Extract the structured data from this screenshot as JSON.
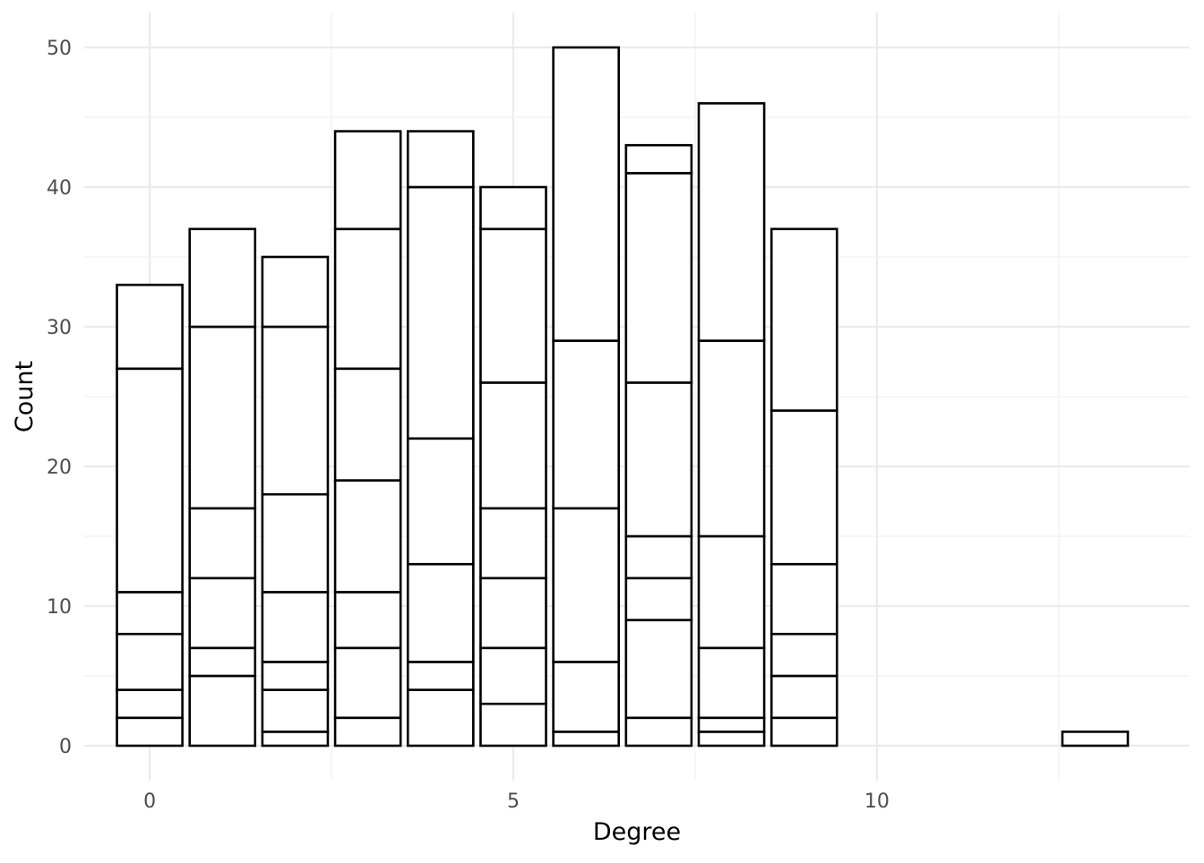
{
  "chart_data": {
    "type": "bar",
    "stacked": true,
    "title": "",
    "xlabel": "Degree",
    "ylabel": "Count",
    "xlim": [
      -0.9,
      14.3
    ],
    "ylim": [
      -2.5,
      52.5
    ],
    "x_ticks": [
      0,
      5,
      10
    ],
    "y_ticks": [
      0,
      10,
      20,
      30,
      40,
      50
    ],
    "grid": true,
    "legend": "none",
    "fill_color": "#ffffff",
    "outline_color": "#000000",
    "bars": [
      {
        "x": 0,
        "total": 33,
        "boundaries": [
          2,
          4,
          8,
          11,
          27,
          33
        ]
      },
      {
        "x": 1,
        "total": 37,
        "boundaries": [
          5,
          7,
          12,
          17,
          30,
          37
        ]
      },
      {
        "x": 2,
        "total": 35,
        "boundaries": [
          1,
          4,
          6,
          11,
          18,
          30,
          35
        ]
      },
      {
        "x": 3,
        "total": 44,
        "boundaries": [
          2,
          7,
          11,
          19,
          27,
          37,
          44
        ]
      },
      {
        "x": 4,
        "total": 44,
        "boundaries": [
          4,
          6,
          13,
          22,
          40,
          44
        ]
      },
      {
        "x": 5,
        "total": 40,
        "boundaries": [
          3,
          7,
          12,
          17,
          26,
          37,
          40
        ]
      },
      {
        "x": 6,
        "total": 50,
        "boundaries": [
          1,
          6,
          17,
          29,
          50
        ]
      },
      {
        "x": 7,
        "total": 43,
        "boundaries": [
          2,
          9,
          12,
          15,
          26,
          41,
          43
        ]
      },
      {
        "x": 8,
        "total": 46,
        "boundaries": [
          1,
          2,
          7,
          15,
          29,
          46
        ]
      },
      {
        "x": 9,
        "total": 37,
        "boundaries": [
          2,
          5,
          8,
          13,
          24,
          37
        ]
      },
      {
        "x": 13,
        "total": 1,
        "boundaries": [
          1
        ]
      }
    ]
  }
}
